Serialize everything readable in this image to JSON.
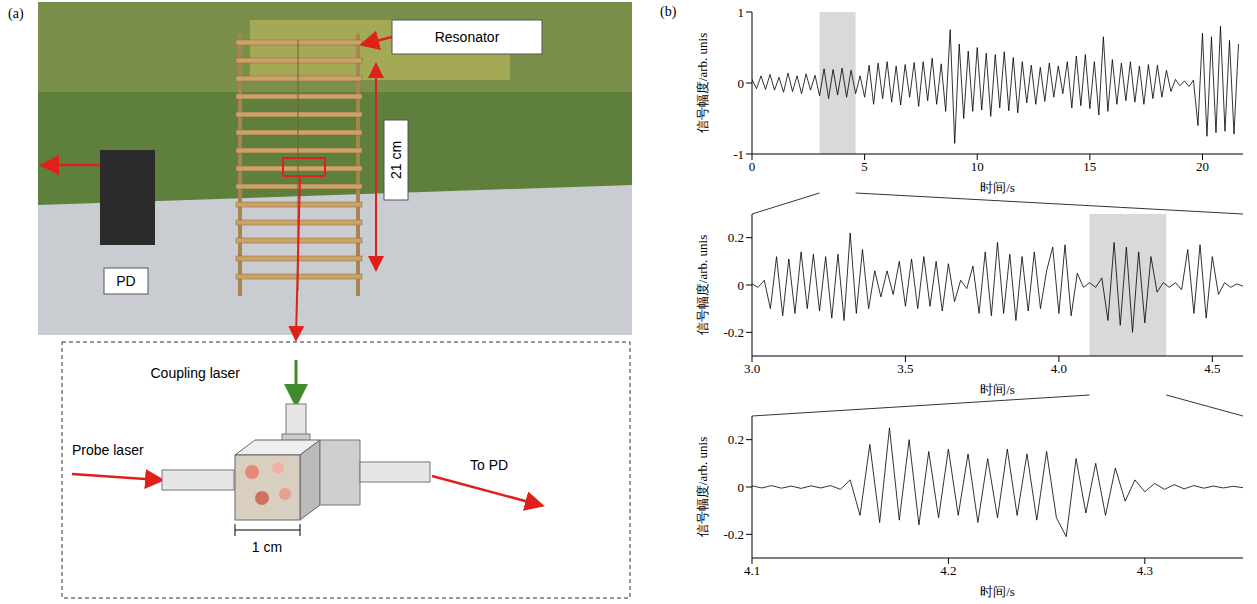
{
  "panel_a": {
    "label": "(a)",
    "resonator": "Resonator",
    "height": "21 cm",
    "detector": "PD",
    "coupling": "Coupling laser",
    "probe": "Probe laser",
    "output": "To PD",
    "cell_size": "1 cm"
  },
  "panel_b_label": "(b)",
  "chart_data": [
    {
      "type": "line",
      "xlabel": "时间/s",
      "ylabel": "信号幅度/arb. unis",
      "xlim": [
        0,
        21.8
      ],
      "xticks": [
        0,
        5,
        10,
        15,
        20
      ],
      "ylim": [
        -1,
        1
      ],
      "yticks": [
        -1,
        0,
        1
      ],
      "zoom_range": [
        3.0,
        4.6
      ],
      "color": "#000000",
      "x": [
        0,
        0.2,
        0.4,
        0.6,
        0.8,
        1.0,
        1.2,
        1.4,
        1.6,
        1.8,
        2.0,
        2.2,
        2.4,
        2.6,
        2.8,
        3.0,
        3.2,
        3.4,
        3.6,
        3.8,
        4.0,
        4.2,
        4.4,
        4.6,
        4.8,
        5.0,
        5.2,
        5.4,
        5.6,
        5.8,
        6.0,
        6.2,
        6.4,
        6.6,
        6.8,
        7.0,
        7.2,
        7.4,
        7.6,
        7.8,
        8.0,
        8.2,
        8.4,
        8.6,
        8.8,
        9.0,
        9.2,
        9.4,
        9.6,
        9.8,
        10.0,
        10.2,
        10.4,
        10.6,
        10.8,
        11.0,
        11.2,
        11.4,
        11.6,
        11.8,
        12.0,
        12.2,
        12.4,
        12.6,
        12.8,
        13.0,
        13.2,
        13.4,
        13.6,
        13.8,
        14.0,
        14.2,
        14.4,
        14.6,
        14.8,
        15.0,
        15.2,
        15.4,
        15.6,
        15.8,
        16.0,
        16.2,
        16.4,
        16.6,
        16.8,
        17.0,
        17.2,
        17.4,
        17.6,
        17.8,
        18.0,
        18.2,
        18.4,
        18.6,
        18.8,
        19.0,
        19.2,
        19.4,
        19.6,
        19.8,
        20.0,
        20.2,
        20.4,
        20.6,
        20.8,
        21.0,
        21.2,
        21.4,
        21.6
      ],
      "values": [
        0.05,
        -0.08,
        0.1,
        -0.09,
        0.12,
        -0.1,
        0.08,
        -0.13,
        0.14,
        -0.12,
        0.1,
        -0.15,
        0.13,
        -0.1,
        0.11,
        -0.18,
        0.2,
        -0.22,
        0.19,
        -0.17,
        0.21,
        -0.2,
        0.18,
        -0.15,
        0.1,
        -0.2,
        0.25,
        -0.3,
        0.28,
        -0.22,
        0.3,
        -0.27,
        0.24,
        -0.31,
        0.26,
        -0.2,
        0.29,
        -0.33,
        0.3,
        -0.25,
        0.35,
        -0.3,
        0.27,
        -0.4,
        0.75,
        -0.85,
        0.55,
        -0.5,
        0.45,
        -0.4,
        0.5,
        -0.38,
        0.42,
        -0.47,
        0.4,
        -0.35,
        0.44,
        -0.39,
        0.36,
        -0.42,
        0.3,
        -0.28,
        0.25,
        -0.3,
        0.22,
        -0.26,
        0.28,
        -0.2,
        0.24,
        -0.15,
        0.3,
        -0.35,
        0.38,
        -0.32,
        0.4,
        -0.36,
        0.3,
        -0.45,
        0.65,
        -0.4,
        0.33,
        -0.3,
        0.28,
        -0.25,
        0.3,
        -0.27,
        0.24,
        -0.3,
        0.26,
        -0.22,
        0.25,
        -0.2,
        0.18,
        -0.12,
        0.05,
        -0.04,
        0.03,
        -0.05,
        0.04,
        -0.6,
        0.7,
        -0.75,
        0.65,
        -0.7,
        0.8,
        -0.68,
        0.6,
        -0.72,
        0.55
      ]
    },
    {
      "type": "line",
      "xlabel": "时间/s",
      "ylabel": "信号幅度/arb. unis",
      "xlim": [
        3.0,
        4.6
      ],
      "xticks": [
        {
          "value": 3.0,
          "label": "3.0"
        },
        3.5,
        {
          "value": 4.0,
          "label": "4.0"
        },
        4.5
      ],
      "ylim": [
        -0.3,
        0.3
      ],
      "yticks": [
        -0.2,
        0,
        0.2
      ],
      "zoom_range": [
        4.1,
        4.35
      ],
      "color": "#000000",
      "x": [
        3.0,
        3.02,
        3.04,
        3.06,
        3.08,
        3.1,
        3.12,
        3.14,
        3.16,
        3.18,
        3.2,
        3.22,
        3.24,
        3.26,
        3.28,
        3.3,
        3.32,
        3.34,
        3.36,
        3.38,
        3.4,
        3.42,
        3.44,
        3.46,
        3.48,
        3.5,
        3.52,
        3.54,
        3.56,
        3.58,
        3.6,
        3.62,
        3.64,
        3.66,
        3.68,
        3.7,
        3.72,
        3.74,
        3.76,
        3.78,
        3.8,
        3.82,
        3.84,
        3.86,
        3.88,
        3.9,
        3.92,
        3.94,
        3.96,
        3.98,
        4.0,
        4.02,
        4.04,
        4.06,
        4.08,
        4.1,
        4.12,
        4.14,
        4.16,
        4.18,
        4.2,
        4.22,
        4.24,
        4.26,
        4.28,
        4.3,
        4.32,
        4.34,
        4.36,
        4.38,
        4.4,
        4.42,
        4.44,
        4.46,
        4.48,
        4.5,
        4.52,
        4.54,
        4.56,
        4.58,
        4.6
      ],
      "values": [
        0.005,
        -0.01,
        0.02,
        -0.1,
        0.12,
        -0.13,
        0.11,
        -0.12,
        0.14,
        -0.1,
        0.13,
        -0.11,
        0.12,
        -0.14,
        0.13,
        -0.15,
        0.22,
        -0.12,
        0.15,
        -0.1,
        0.06,
        -0.05,
        0.06,
        -0.04,
        0.1,
        -0.09,
        0.11,
        -0.1,
        0.12,
        -0.09,
        0.1,
        -0.11,
        0.09,
        -0.07,
        0.02,
        -0.015,
        0.08,
        -0.12,
        0.14,
        -0.13,
        0.18,
        -0.12,
        0.13,
        -0.15,
        0.12,
        -0.11,
        0.14,
        -0.1,
        0.06,
        0.16,
        -0.12,
        0.17,
        -0.13,
        0.05,
        -0.01,
        0.01,
        -0.01,
        0.03,
        -0.15,
        0.18,
        -0.17,
        0.16,
        -0.2,
        0.14,
        -0.16,
        0.12,
        -0.03,
        0.01,
        -0.01,
        0.01,
        -0.02,
        0.15,
        -0.12,
        0.17,
        -0.14,
        0.12,
        -0.04,
        0.01,
        -0.01,
        0.005,
        -0.005
      ]
    },
    {
      "type": "line",
      "xlabel": "时间/s",
      "ylabel": "信号幅度/arb. unis",
      "xlim": [
        4.1,
        4.35
      ],
      "xticks": [
        4.1,
        4.2,
        4.3
      ],
      "ylim": [
        -0.3,
        0.3
      ],
      "yticks": [
        -0.2,
        0,
        0.2
      ],
      "color": "#000000",
      "x": [
        4.1,
        4.105,
        4.11,
        4.115,
        4.12,
        4.125,
        4.13,
        4.135,
        4.14,
        4.145,
        4.15,
        4.155,
        4.16,
        4.165,
        4.17,
        4.175,
        4.18,
        4.185,
        4.19,
        4.195,
        4.2,
        4.205,
        4.21,
        4.215,
        4.22,
        4.225,
        4.23,
        4.235,
        4.24,
        4.245,
        4.25,
        4.255,
        4.26,
        4.265,
        4.27,
        4.275,
        4.28,
        4.285,
        4.29,
        4.295,
        4.3,
        4.305,
        4.31,
        4.315,
        4.32,
        4.325,
        4.33,
        4.335,
        4.34,
        4.345,
        4.35
      ],
      "values": [
        0.005,
        -0.004,
        0.006,
        -0.005,
        0.004,
        -0.006,
        0.005,
        -0.004,
        0.006,
        -0.01,
        0.03,
        -0.12,
        0.18,
        -0.15,
        0.25,
        -0.14,
        0.2,
        -0.16,
        0.15,
        -0.13,
        0.16,
        -0.12,
        0.14,
        -0.15,
        0.12,
        -0.13,
        0.16,
        -0.12,
        0.14,
        -0.14,
        0.15,
        -0.13,
        -0.21,
        0.12,
        -0.11,
        0.1,
        -0.12,
        0.08,
        -0.06,
        0.03,
        -0.02,
        0.015,
        -0.01,
        0.01,
        -0.008,
        0.006,
        -0.005,
        0.004,
        -0.004,
        0.003,
        -0.003
      ]
    }
  ]
}
